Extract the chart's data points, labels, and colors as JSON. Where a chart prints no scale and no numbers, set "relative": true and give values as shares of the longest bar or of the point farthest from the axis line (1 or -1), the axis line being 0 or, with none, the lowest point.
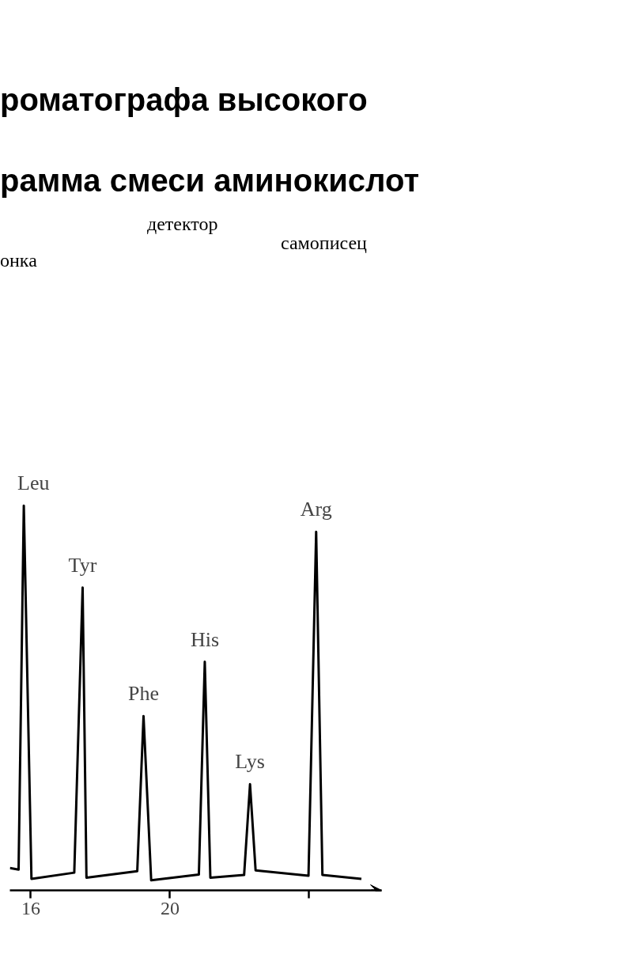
{
  "chart_data": {
    "type": "line",
    "title": "роматографа высокого",
    "subtitle": "рамма смеси аминокислот",
    "annotations": [
      "онка",
      "детектор",
      "самописец",
      {
        "text": "Leu",
        "x": 15.8,
        "y": 1.0
      },
      {
        "text": "Tyr",
        "x": 17.49,
        "y": 0.787
      },
      {
        "text": "Phe",
        "x": 19.24,
        "y": 0.453
      },
      {
        "text": "His",
        "x": 21.0,
        "y": 0.594
      },
      {
        "text": "Lys",
        "x": 22.3,
        "y": 0.276
      },
      {
        "text": "Arg",
        "x": 24.2,
        "y": 0.932
      }
    ],
    "relative": true,
    "xlim": [
      15.4,
      26.08
    ],
    "xticks": [
      16,
      20,
      {
        "value": 24,
        "label": null
      }
    ],
    "grid": false,
    "tick_labels": "x",
    "marker": "none",
    "line_style": "solid",
    "series": [
      {
        "color": "#000000",
        "x": [
          15.4,
          15.65,
          15.8,
          16.02,
          17.25,
          17.49,
          17.6,
          19.06,
          19.24,
          19.46,
          20.83,
          21.0,
          21.16,
          22.13,
          22.3,
          22.46,
          23.98,
          24.2,
          24.38,
          25.5
        ],
        "values": [
          0.058,
          0.054,
          1.0,
          0.03,
          0.046,
          0.787,
          0.033,
          0.05,
          0.453,
          0.026,
          0.041,
          0.594,
          0.033,
          0.04,
          0.276,
          0.052,
          0.038,
          0.932,
          0.04,
          0.03
        ]
      }
    ]
  }
}
